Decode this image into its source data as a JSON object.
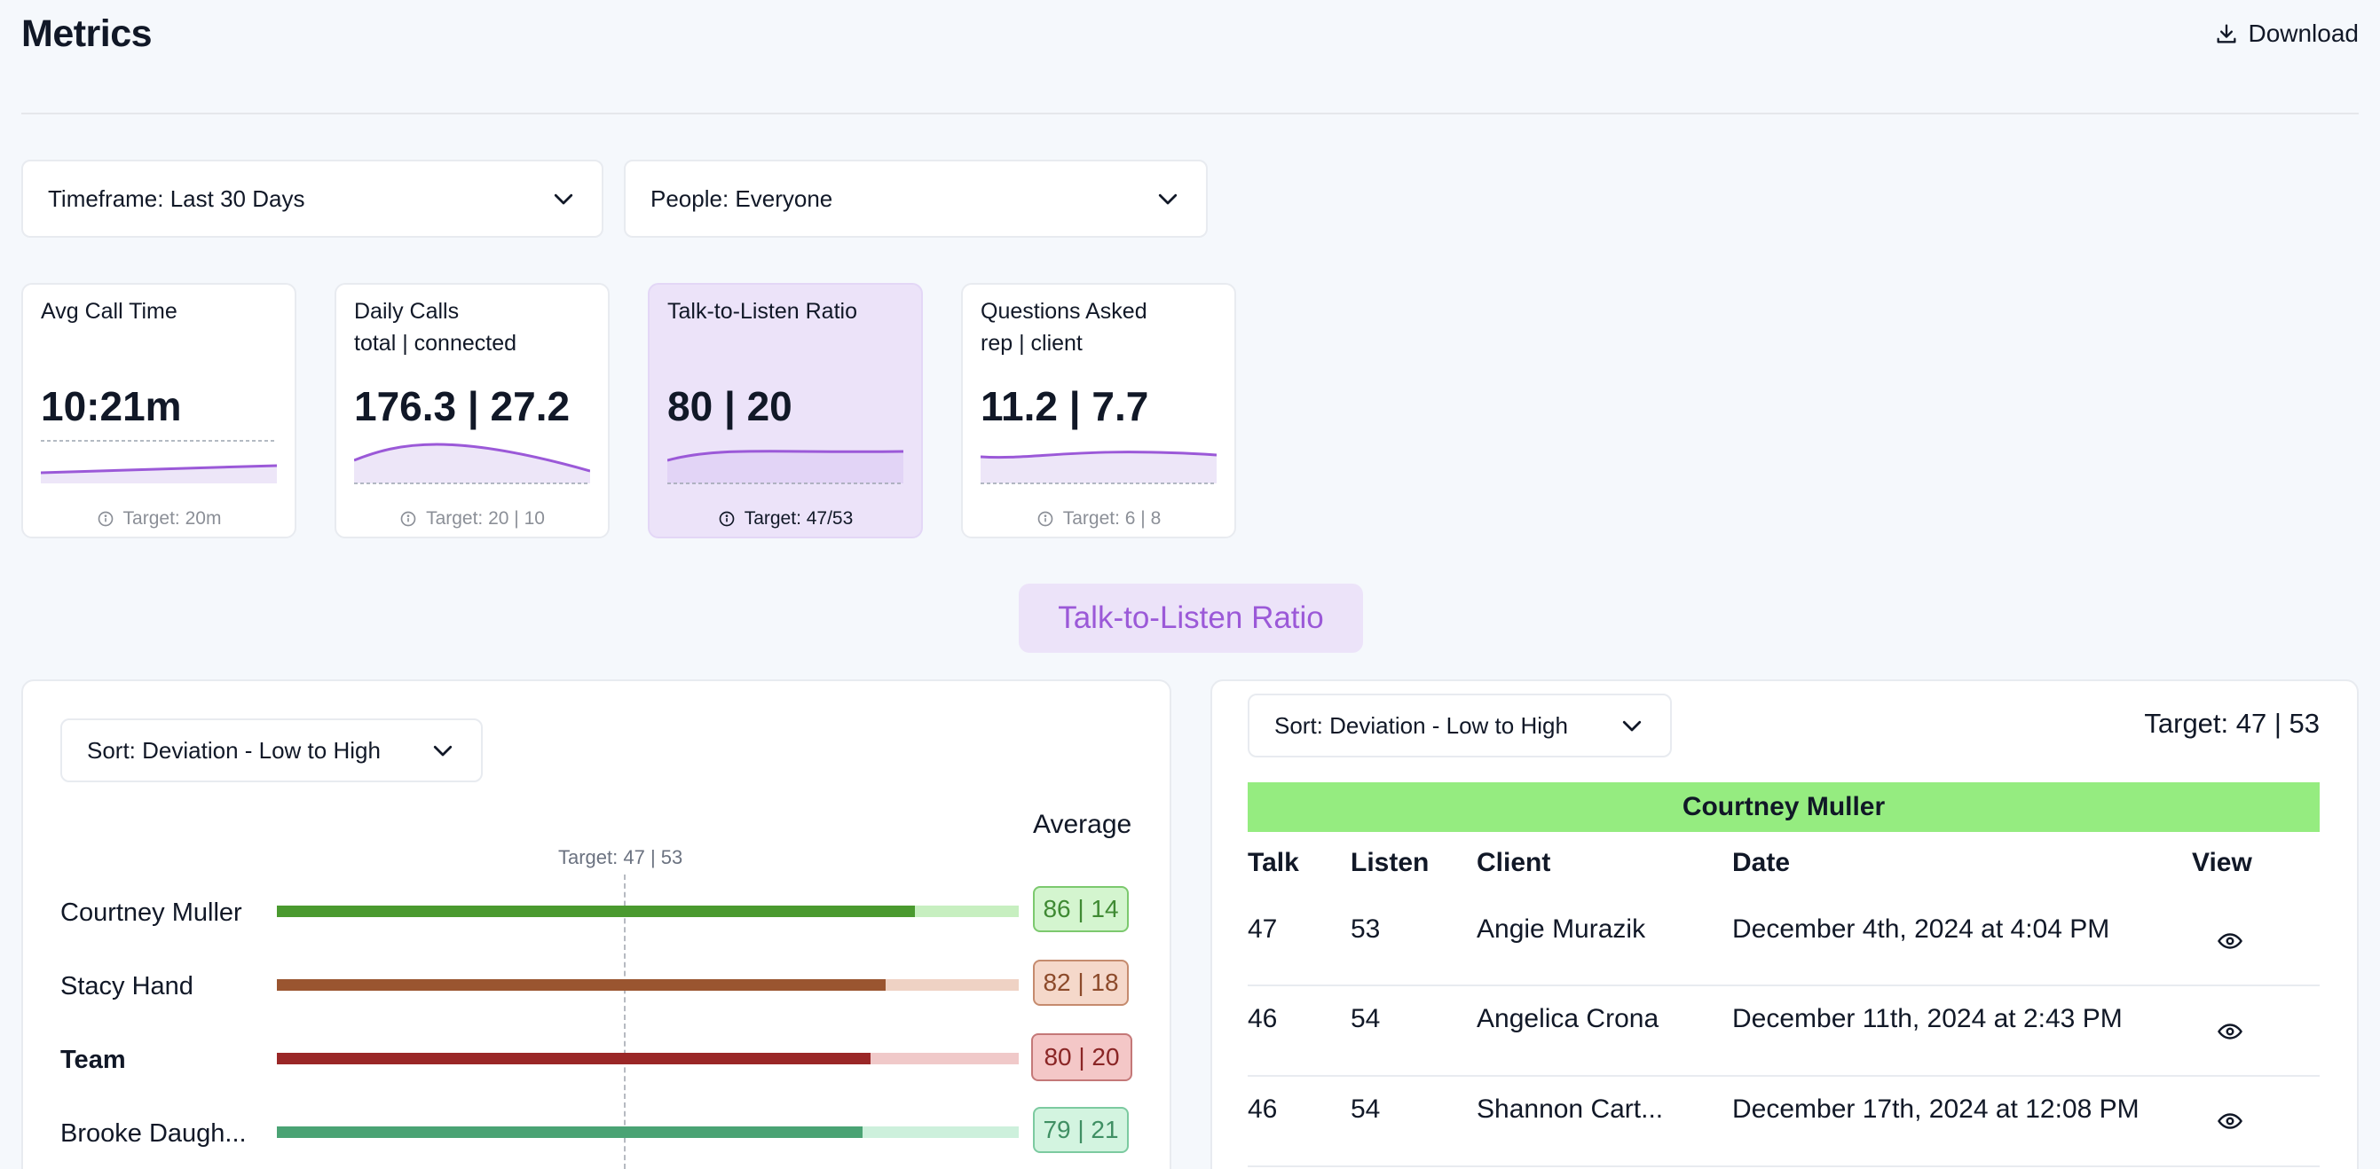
{
  "header": {
    "title": "Metrics",
    "download_label": "Download"
  },
  "filters": {
    "timeframe": "Timeframe: Last 30 Days",
    "people": "People: Everyone"
  },
  "cards": [
    {
      "title_line1": "Avg Call Time",
      "title_line2": "",
      "value": "10:21m",
      "target": "Target: 20m",
      "active": false
    },
    {
      "title_line1": "Daily Calls",
      "title_line2": "total | connected",
      "value": "176.3 | 27.2",
      "target": "Target: 20 | 10",
      "active": false
    },
    {
      "title_line1": "Talk-to-Listen Ratio",
      "title_line2": "",
      "value": "80 | 20",
      "target": "Target: 47/53",
      "active": true
    },
    {
      "title_line1": "Questions Asked",
      "title_line2": "rep | client",
      "value": "11.2 | 7.7",
      "target": "Target: 6 | 8",
      "active": false
    }
  ],
  "section_title": "Talk-to-Listen Ratio",
  "left_panel": {
    "sort_label": "Sort: Deviation - Low to High",
    "average_label": "Average",
    "target_marker": "Target: 47 | 53",
    "target_value": 47,
    "rows": [
      {
        "name": "Courtney Muller",
        "talk": 86,
        "listen": 14,
        "ratio": "86 | 14",
        "bold": false,
        "color": "#4a9a2f",
        "rest": "#c7efc0",
        "badge_bg": "#d4f5cf",
        "badge_border": "#7cc96e",
        "badge_text": "#3f8a33"
      },
      {
        "name": "Stacy Hand",
        "talk": 82,
        "listen": 18,
        "ratio": "82 | 18",
        "bold": false,
        "color": "#9a5530",
        "rest": "#efd2c4",
        "badge_bg": "#f5d8ca",
        "badge_border": "#c58b6e",
        "badge_text": "#8c4a2a"
      },
      {
        "name": "Team",
        "talk": 80,
        "listen": 20,
        "ratio": "80 | 20",
        "bold": true,
        "color": "#9a2727",
        "rest": "#f0c9c9",
        "badge_bg": "#f4c7c7",
        "badge_border": "#c47878",
        "badge_text": "#8a2525"
      },
      {
        "name": "Brooke Daugh...",
        "talk": 79,
        "listen": 21,
        "ratio": "79 | 21",
        "bold": false,
        "color": "#4aa374",
        "rest": "#cdf0dc",
        "badge_bg": "#d3f4e0",
        "badge_border": "#7ccaa0",
        "badge_text": "#3f8f63"
      }
    ]
  },
  "right_panel": {
    "sort_label": "Sort: Deviation - Low to High",
    "target_label": "Target: 47 | 53",
    "person_header": "Courtney Muller",
    "columns": [
      "Talk",
      "Listen",
      "Client",
      "Date",
      "View"
    ],
    "rows": [
      {
        "talk": "47",
        "listen": "53",
        "client": "Angie Murazik",
        "date": "December 4th, 2024 at 4:04 PM"
      },
      {
        "talk": "46",
        "listen": "54",
        "client": "Angelica Crona",
        "date": "December 11th, 2024 at 2:43 PM"
      },
      {
        "talk": "46",
        "listen": "54",
        "client": "Shannon Cart...",
        "date": "December 17th, 2024 at 12:08 PM"
      }
    ]
  },
  "icons": {
    "download": "download-icon",
    "chevron": "chevron-down-icon",
    "info": "info-icon",
    "view": "eye-icon"
  },
  "colors": {
    "accent_purple": "#9b59d8",
    "person_header_bg": "#95ec80"
  }
}
